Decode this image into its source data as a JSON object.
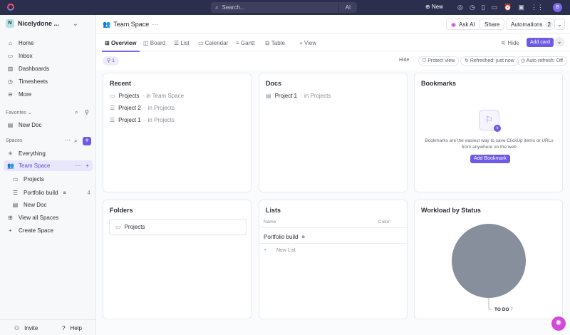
{
  "topbar": {
    "search_placeholder": "Search...",
    "ai_label": "AI",
    "new_label": "New",
    "avatar_initial": "B"
  },
  "sidebar": {
    "workspace_initial": "N",
    "workspace_name": "Nicelydone ...",
    "nav": [
      {
        "label": "Home",
        "icon": "home-icon"
      },
      {
        "label": "Inbox",
        "icon": "inbox-icon"
      },
      {
        "label": "Dashboards",
        "icon": "dashboard-icon"
      },
      {
        "label": "Timesheets",
        "icon": "timesheet-icon"
      },
      {
        "label": "More",
        "icon": "more-icon"
      }
    ],
    "favorites_label": "Favorites",
    "favorites": [
      {
        "label": "New Doc"
      }
    ],
    "spaces_label": "Spaces",
    "spaces": [
      {
        "label": "Everything"
      },
      {
        "label": "Team Space"
      },
      {
        "label": "Projects"
      },
      {
        "label": "Portfolio build",
        "count": "4"
      },
      {
        "label": "New Doc"
      },
      {
        "label": "View all Spaces"
      },
      {
        "label": "Create Space"
      }
    ],
    "invite_label": "Invite",
    "help_label": "Help"
  },
  "header": {
    "title": "Team Space",
    "ask_ai": "Ask AI",
    "share": "Share",
    "automations": "Automations",
    "automations_count": "2"
  },
  "tabs": [
    {
      "label": "Overview"
    },
    {
      "label": "Board"
    },
    {
      "label": "List"
    },
    {
      "label": "Calendar"
    },
    {
      "label": "Gantt"
    },
    {
      "label": "Table"
    },
    {
      "label": "View"
    }
  ],
  "toolbar": {
    "hide": "Hide",
    "add_card": "Add card",
    "filter_count": "1",
    "hide2": "Hide",
    "protect_view": "Protect view",
    "refreshed": "Refreshed: just now",
    "auto_refresh": "Auto refresh: Off"
  },
  "recent": {
    "title": "Recent",
    "items": [
      {
        "name": "Projects",
        "loc": "· in Team Space"
      },
      {
        "name": "Project 2",
        "loc": "· in Projects"
      },
      {
        "name": "Project 1",
        "loc": "· in Projects"
      }
    ]
  },
  "docs": {
    "title": "Docs",
    "items": [
      {
        "name": "Project 1",
        "loc": "· in Projects"
      }
    ]
  },
  "bookmarks": {
    "title": "Bookmarks",
    "text": "Bookmarks are the easiest way to save ClickUp items or URLs from anywhere on the web",
    "button": "Add Bookmark"
  },
  "folders": {
    "title": "Folders",
    "items": [
      {
        "name": "Projects"
      }
    ]
  },
  "lists": {
    "title": "Lists",
    "col_name": "Name",
    "col_color": "Color",
    "items": [
      {
        "name": "Portfolio build"
      }
    ],
    "new_list": "New List"
  },
  "workload": {
    "title": "Workload by Status",
    "label": "TO DO",
    "value": "7",
    "color": "#878f9c"
  }
}
